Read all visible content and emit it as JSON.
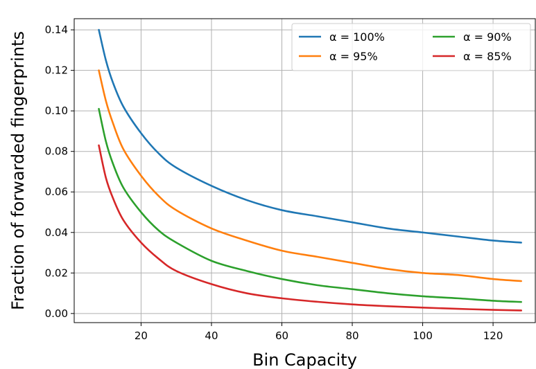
{
  "chart_data": {
    "type": "line",
    "xlabel": "Bin Capacity",
    "ylabel": "Fraction of forwarded fingerprints",
    "xlim": [
      1,
      132
    ],
    "ylim": [
      -0.0045,
      0.1455
    ],
    "xticks": [
      20,
      40,
      60,
      80,
      100,
      120
    ],
    "yticks": [
      0.0,
      0.02,
      0.04,
      0.06,
      0.08,
      0.1,
      0.12,
      0.14
    ],
    "xtick_labels": [
      "20",
      "40",
      "60",
      "80",
      "100",
      "120"
    ],
    "ytick_labels": [
      "0.00",
      "0.02",
      "0.04",
      "0.06",
      "0.08",
      "0.10",
      "0.12",
      "0.14"
    ],
    "grid": true,
    "legend_position": "top-right",
    "legend_columns": 2,
    "x": [
      8,
      10,
      12,
      15,
      20,
      25,
      30,
      40,
      50,
      60,
      70,
      80,
      90,
      100,
      110,
      120,
      128
    ],
    "series": [
      {
        "name": "α = 100%",
        "color": "#1f77b4",
        "values": [
          0.14,
          0.125,
          0.114,
          0.102,
          0.089,
          0.079,
          0.072,
          0.063,
          0.056,
          0.051,
          0.048,
          0.045,
          0.042,
          0.04,
          0.038,
          0.036,
          0.035
        ]
      },
      {
        "name": "α = 95%",
        "color": "#ff7f0e",
        "values": [
          0.12,
          0.105,
          0.094,
          0.081,
          0.068,
          0.058,
          0.051,
          0.042,
          0.036,
          0.031,
          0.028,
          0.025,
          0.022,
          0.02,
          0.019,
          0.017,
          0.016
        ]
      },
      {
        "name": "α = 90%",
        "color": "#2ca02c",
        "values": [
          0.101,
          0.085,
          0.074,
          0.062,
          0.05,
          0.041,
          0.035,
          0.026,
          0.021,
          0.017,
          0.014,
          0.012,
          0.01,
          0.0085,
          0.0075,
          0.0063,
          0.0057
        ]
      },
      {
        "name": "α = 85%",
        "color": "#d62728",
        "values": [
          0.083,
          0.067,
          0.057,
          0.046,
          0.035,
          0.027,
          0.021,
          0.0145,
          0.01,
          0.0075,
          0.0058,
          0.0045,
          0.0036,
          0.0029,
          0.0023,
          0.0018,
          0.0015
        ]
      }
    ]
  }
}
